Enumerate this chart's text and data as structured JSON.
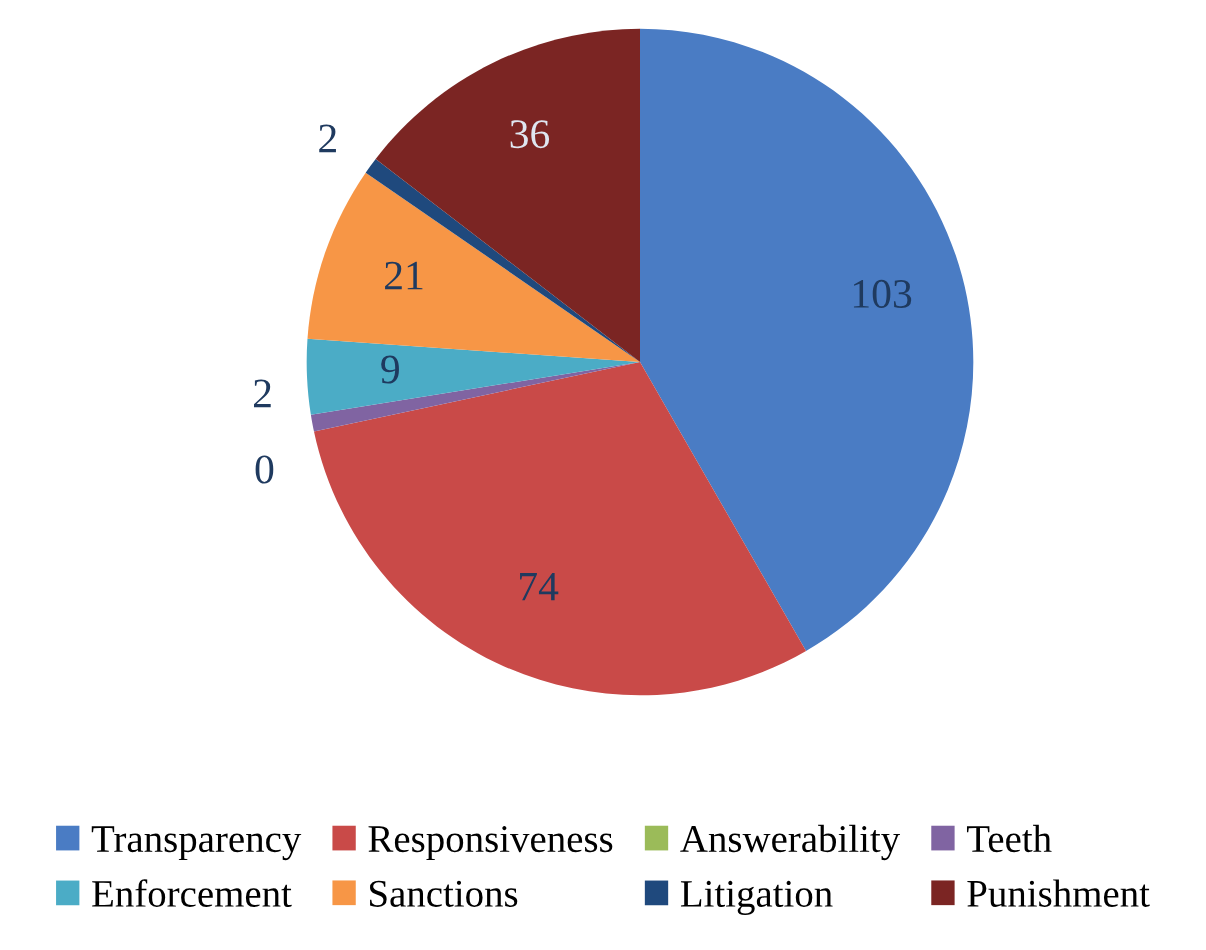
{
  "chart_data": {
    "type": "pie",
    "categories": [
      "Transparency",
      "Responsiveness",
      "Answerability",
      "Teeth",
      "Enforcement",
      "Sanctions",
      "Litigation",
      "Punishment"
    ],
    "values": [
      103,
      74,
      0,
      2,
      9,
      21,
      2,
      36
    ],
    "colors": [
      "#4a7cc4",
      "#c94a48",
      "#9bbb59",
      "#8064a2",
      "#4bacc6",
      "#f79646",
      "#1f497d",
      "#7b2523"
    ],
    "value_labels": [
      "103",
      "74",
      "0",
      "2",
      "9",
      "21",
      "2",
      "36"
    ],
    "legend": "bottom"
  }
}
